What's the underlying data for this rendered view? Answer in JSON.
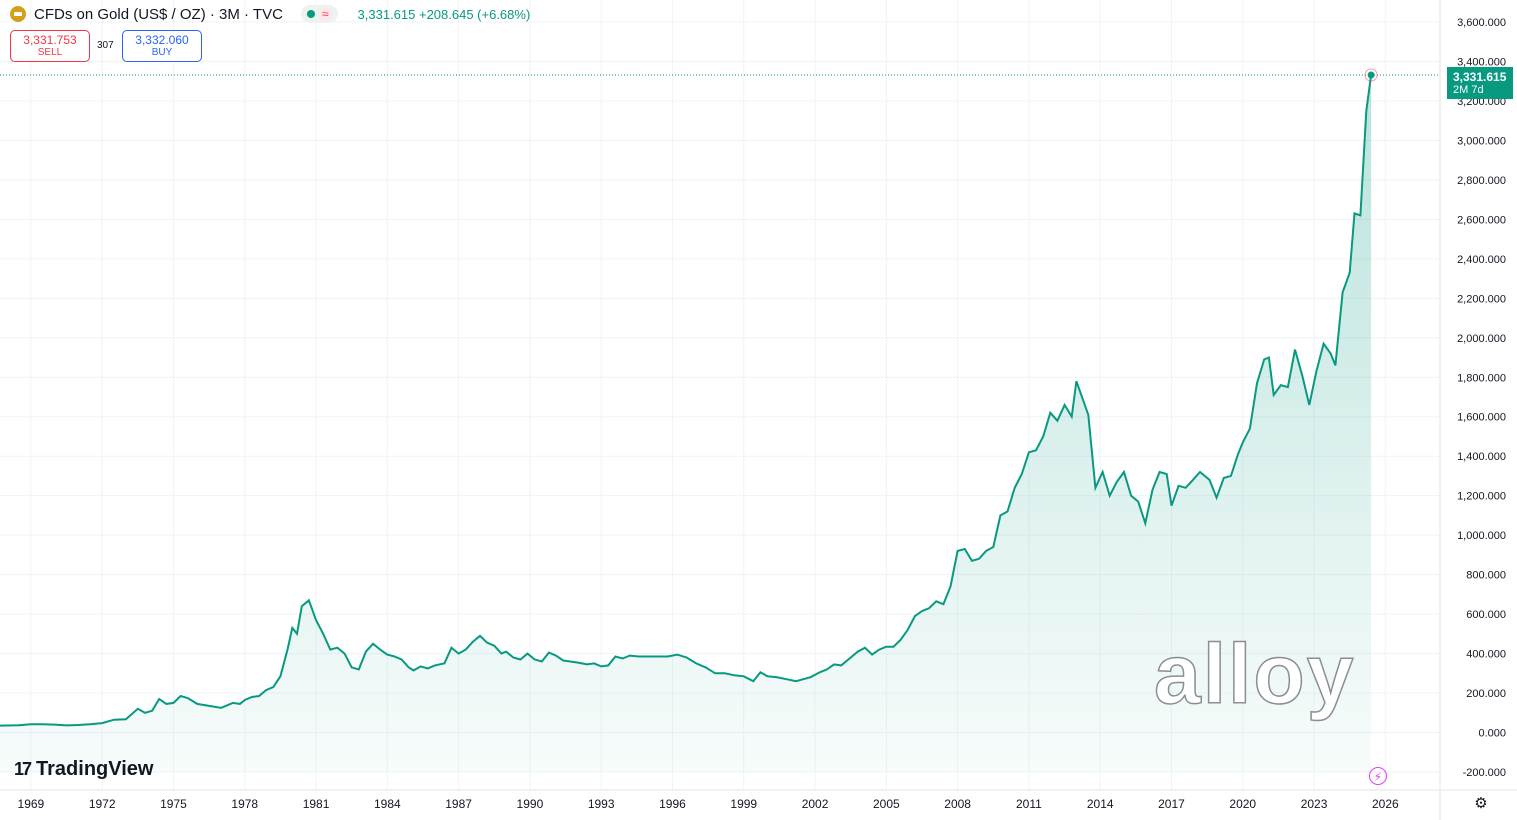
{
  "header": {
    "title": "CFDs on Gold (US$ / OZ) · 3M · TVC",
    "quote": "3,331.615 +208.645 (+6.68%)",
    "icon": "gold-icon",
    "status_icon": "≈"
  },
  "trade": {
    "sell_price": "3,331.753",
    "sell_label": "SELL",
    "spread": "307",
    "buy_price": "3,332.060",
    "buy_label": "BUY"
  },
  "last_price": {
    "value": "3,331.615",
    "countdown": "2M 7d"
  },
  "branding": {
    "logo_mark": "17",
    "logo_text": "TradingView",
    "watermark": "alloy"
  },
  "colors": {
    "line": "#089981",
    "fill": "#089981",
    "sell": "#f23645",
    "buy": "#2962ff",
    "grid": "#f0f3fa"
  },
  "chart_data": {
    "type": "area",
    "title": "",
    "xlabel": "",
    "ylabel": "",
    "x_range": [
      1967.7,
      2028.3
    ],
    "ylim": [
      -200,
      3600
    ],
    "grid": true,
    "y_ticks": [
      {
        "value": 3600,
        "label": "3,600.000"
      },
      {
        "value": 3400,
        "label": "3,400.000"
      },
      {
        "value": 3200,
        "label": "3,200.000"
      },
      {
        "value": 3000,
        "label": "3,000.000"
      },
      {
        "value": 2800,
        "label": "2,800.000"
      },
      {
        "value": 2600,
        "label": "2,600.000"
      },
      {
        "value": 2400,
        "label": "2,400.000"
      },
      {
        "value": 2200,
        "label": "2,200.000"
      },
      {
        "value": 2000,
        "label": "2,000.000"
      },
      {
        "value": 1800,
        "label": "1,800.000"
      },
      {
        "value": 1600,
        "label": "1,600.000"
      },
      {
        "value": 1400,
        "label": "1,400.000"
      },
      {
        "value": 1200,
        "label": "1,200.000"
      },
      {
        "value": 1000,
        "label": "1,000.000"
      },
      {
        "value": 800,
        "label": "800.000"
      },
      {
        "value": 600,
        "label": "600.000"
      },
      {
        "value": 400,
        "label": "400.000"
      },
      {
        "value": 200,
        "label": "200.000"
      },
      {
        "value": 0,
        "label": "0.000"
      },
      {
        "value": -200,
        "label": "-200.000"
      }
    ],
    "x_ticks": [
      {
        "value": 1969,
        "label": "1969"
      },
      {
        "value": 1972,
        "label": "1972"
      },
      {
        "value": 1975,
        "label": "1975"
      },
      {
        "value": 1978,
        "label": "1978"
      },
      {
        "value": 1981,
        "label": "1981"
      },
      {
        "value": 1984,
        "label": "1984"
      },
      {
        "value": 1987,
        "label": "1987"
      },
      {
        "value": 1990,
        "label": "1990"
      },
      {
        "value": 1993,
        "label": "1993"
      },
      {
        "value": 1996,
        "label": "1996"
      },
      {
        "value": 1999,
        "label": "1999"
      },
      {
        "value": 2002,
        "label": "2002"
      },
      {
        "value": 2005,
        "label": "2005"
      },
      {
        "value": 2008,
        "label": "2008"
      },
      {
        "value": 2011,
        "label": "2011"
      },
      {
        "value": 2014,
        "label": "2014"
      },
      {
        "value": 2017,
        "label": "2017"
      },
      {
        "value": 2020,
        "label": "2020"
      },
      {
        "value": 2023,
        "label": "2023"
      },
      {
        "value": 2026,
        "label": "2026"
      }
    ],
    "series": [
      {
        "values": [
          [
            1967.7,
            35
          ],
          [
            1968.5,
            37
          ],
          [
            1969.0,
            42
          ],
          [
            1969.5,
            42
          ],
          [
            1970.0,
            40
          ],
          [
            1970.5,
            36
          ],
          [
            1971.0,
            38
          ],
          [
            1971.5,
            42
          ],
          [
            1972.0,
            48
          ],
          [
            1972.5,
            65
          ],
          [
            1973.0,
            67
          ],
          [
            1973.5,
            120
          ],
          [
            1973.8,
            100
          ],
          [
            1974.1,
            110
          ],
          [
            1974.4,
            170
          ],
          [
            1974.7,
            145
          ],
          [
            1975.0,
            150
          ],
          [
            1975.3,
            185
          ],
          [
            1975.6,
            175
          ],
          [
            1976.0,
            145
          ],
          [
            1976.5,
            135
          ],
          [
            1977.0,
            125
          ],
          [
            1977.5,
            150
          ],
          [
            1977.8,
            145
          ],
          [
            1978.0,
            165
          ],
          [
            1978.3,
            180
          ],
          [
            1978.6,
            185
          ],
          [
            1978.9,
            215
          ],
          [
            1979.2,
            230
          ],
          [
            1979.5,
            285
          ],
          [
            1979.8,
            420
          ],
          [
            1980.0,
            530
          ],
          [
            1980.2,
            500
          ],
          [
            1980.4,
            640
          ],
          [
            1980.7,
            670
          ],
          [
            1981.0,
            570
          ],
          [
            1981.3,
            500
          ],
          [
            1981.6,
            420
          ],
          [
            1981.9,
            430
          ],
          [
            1982.2,
            400
          ],
          [
            1982.5,
            330
          ],
          [
            1982.8,
            320
          ],
          [
            1983.1,
            410
          ],
          [
            1983.4,
            450
          ],
          [
            1983.7,
            420
          ],
          [
            1984.0,
            395
          ],
          [
            1984.3,
            385
          ],
          [
            1984.6,
            370
          ],
          [
            1984.9,
            330
          ],
          [
            1985.1,
            315
          ],
          [
            1985.4,
            335
          ],
          [
            1985.7,
            325
          ],
          [
            1986.0,
            340
          ],
          [
            1986.4,
            350
          ],
          [
            1986.7,
            430
          ],
          [
            1987.0,
            400
          ],
          [
            1987.3,
            420
          ],
          [
            1987.6,
            460
          ],
          [
            1987.9,
            490
          ],
          [
            1988.2,
            455
          ],
          [
            1988.5,
            440
          ],
          [
            1988.8,
            400
          ],
          [
            1989.0,
            410
          ],
          [
            1989.3,
            380
          ],
          [
            1989.6,
            370
          ],
          [
            1989.9,
            400
          ],
          [
            1990.2,
            370
          ],
          [
            1990.5,
            360
          ],
          [
            1990.8,
            405
          ],
          [
            1991.1,
            390
          ],
          [
            1991.4,
            365
          ],
          [
            1991.7,
            360
          ],
          [
            1992.0,
            355
          ],
          [
            1992.4,
            345
          ],
          [
            1992.7,
            350
          ],
          [
            1993.0,
            335
          ],
          [
            1993.3,
            340
          ],
          [
            1993.6,
            385
          ],
          [
            1993.9,
            375
          ],
          [
            1994.2,
            390
          ],
          [
            1994.6,
            385
          ],
          [
            1995.0,
            385
          ],
          [
            1995.4,
            385
          ],
          [
            1995.8,
            385
          ],
          [
            1996.2,
            395
          ],
          [
            1996.6,
            380
          ],
          [
            1997.0,
            350
          ],
          [
            1997.4,
            330
          ],
          [
            1997.8,
            300
          ],
          [
            1998.2,
            300
          ],
          [
            1998.6,
            290
          ],
          [
            1999.0,
            285
          ],
          [
            1999.4,
            260
          ],
          [
            1999.7,
            305
          ],
          [
            2000.0,
            285
          ],
          [
            2000.4,
            280
          ],
          [
            2000.8,
            270
          ],
          [
            2001.2,
            260
          ],
          [
            2001.5,
            270
          ],
          [
            2001.8,
            280
          ],
          [
            2002.2,
            305
          ],
          [
            2002.5,
            320
          ],
          [
            2002.8,
            345
          ],
          [
            2003.1,
            340
          ],
          [
            2003.4,
            370
          ],
          [
            2003.8,
            410
          ],
          [
            2004.1,
            430
          ],
          [
            2004.4,
            395
          ],
          [
            2004.7,
            420
          ],
          [
            2005.0,
            435
          ],
          [
            2005.3,
            435
          ],
          [
            2005.6,
            470
          ],
          [
            2005.9,
            520
          ],
          [
            2006.2,
            590
          ],
          [
            2006.5,
            615
          ],
          [
            2006.8,
            630
          ],
          [
            2007.1,
            665
          ],
          [
            2007.4,
            650
          ],
          [
            2007.7,
            740
          ],
          [
            2008.0,
            920
          ],
          [
            2008.3,
            930
          ],
          [
            2008.6,
            870
          ],
          [
            2008.9,
            880
          ],
          [
            2009.2,
            920
          ],
          [
            2009.5,
            940
          ],
          [
            2009.8,
            1100
          ],
          [
            2010.1,
            1120
          ],
          [
            2010.4,
            1240
          ],
          [
            2010.7,
            1310
          ],
          [
            2011.0,
            1420
          ],
          [
            2011.3,
            1430
          ],
          [
            2011.6,
            1500
          ],
          [
            2011.9,
            1620
          ],
          [
            2012.2,
            1580
          ],
          [
            2012.5,
            1660
          ],
          [
            2012.8,
            1600
          ],
          [
            2013.0,
            1780
          ],
          [
            2013.5,
            1610
          ],
          [
            2013.8,
            1240
          ],
          [
            2014.1,
            1320
          ],
          [
            2014.4,
            1200
          ],
          [
            2014.7,
            1270
          ],
          [
            2015.0,
            1320
          ],
          [
            2015.3,
            1200
          ],
          [
            2015.6,
            1170
          ],
          [
            2015.9,
            1060
          ],
          [
            2016.2,
            1230
          ],
          [
            2016.5,
            1320
          ],
          [
            2016.8,
            1310
          ],
          [
            2017.0,
            1150
          ],
          [
            2017.3,
            1250
          ],
          [
            2017.6,
            1240
          ],
          [
            2017.9,
            1280
          ],
          [
            2018.2,
            1320
          ],
          [
            2018.6,
            1280
          ],
          [
            2018.9,
            1190
          ],
          [
            2019.2,
            1290
          ],
          [
            2019.5,
            1300
          ],
          [
            2019.8,
            1410
          ],
          [
            2020.0,
            1470
          ],
          [
            2020.3,
            1540
          ],
          [
            2020.6,
            1770
          ],
          [
            2020.9,
            1890
          ],
          [
            2021.1,
            1900
          ],
          [
            2021.3,
            1710
          ],
          [
            2021.6,
            1760
          ],
          [
            2021.9,
            1750
          ],
          [
            2022.2,
            1940
          ],
          [
            2022.5,
            1810
          ],
          [
            2022.8,
            1660
          ],
          [
            2023.1,
            1830
          ],
          [
            2023.4,
            1970
          ],
          [
            2023.7,
            1920
          ],
          [
            2023.9,
            1860
          ],
          [
            2024.2,
            2230
          ],
          [
            2024.5,
            2330
          ],
          [
            2024.7,
            2630
          ],
          [
            2024.95,
            2620
          ],
          [
            2025.2,
            3150
          ],
          [
            2025.4,
            3331.615
          ]
        ]
      }
    ]
  }
}
